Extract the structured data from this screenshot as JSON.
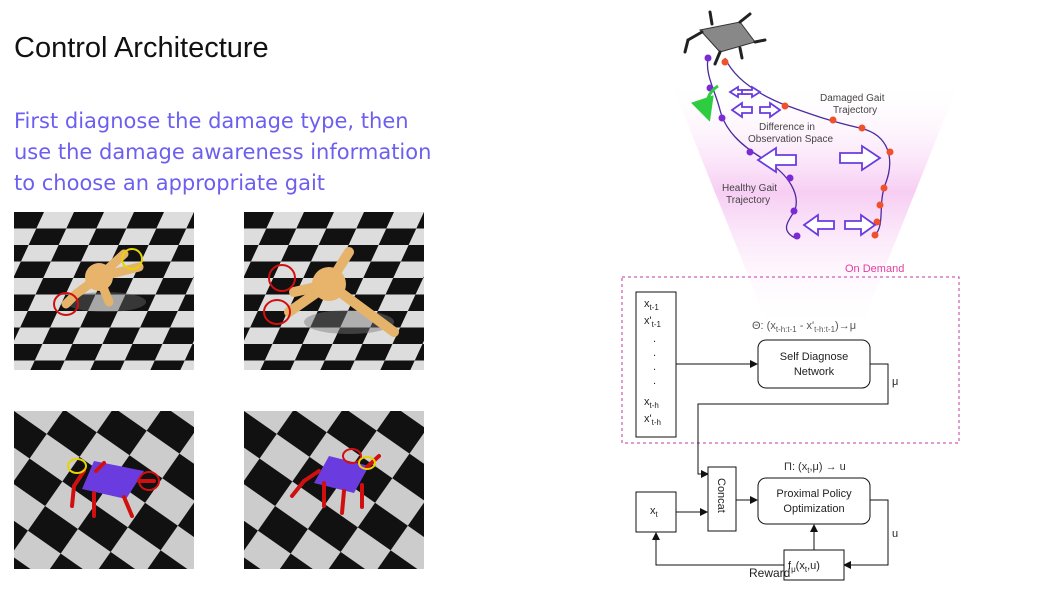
{
  "slide": {
    "title": "Control Architecture",
    "subtitle": "First diagnose the damage type, then use the damage awareness information to choose an appropriate gait"
  },
  "trajectory": {
    "damaged_label": [
      "Damaged Gait",
      "Trajectory"
    ],
    "difference_label": [
      "Difference in",
      "Observation Space"
    ],
    "healthy_label": [
      "Healthy Gait",
      "Trajectory"
    ],
    "on_demand": "On Demand"
  },
  "architecture": {
    "history_items": [
      {
        "base": "x",
        "sub": "t-1"
      },
      {
        "base": "x'",
        "sub": "t-1"
      },
      {
        "base": ".",
        "sub": ""
      },
      {
        "base": ".",
        "sub": ""
      },
      {
        "base": ".",
        "sub": ""
      },
      {
        "base": ".",
        "sub": ""
      },
      {
        "base": "x",
        "sub": "t-h"
      },
      {
        "base": "x'",
        "sub": "t-h"
      }
    ],
    "diagnose_formula": {
      "prefix": "Θ: (x",
      "sub1": "t-h:t-1",
      "mid": " - x'",
      "sub2": "t-h:t-1",
      "suffix": ")→μ"
    },
    "self_diagnose": [
      "Self Diagnose",
      "Network"
    ],
    "mu_label": "μ",
    "policy_formula": {
      "prefix": "Π: (x",
      "sub": "t",
      "suffix": ",μ) → u"
    },
    "ppo": [
      "Proximal Policy",
      "Optimization"
    ],
    "concat": "Concat",
    "xt": {
      "base": "x",
      "sub": "t"
    },
    "u_label": "u",
    "reward": "Reward",
    "f_box": {
      "a": "f",
      "sub": "μ",
      "b": "(x",
      "sub2": "t",
      "c": ",u)"
    }
  },
  "colors": {
    "subtitle": "#6c5ff0",
    "healthy_dot": "#7a2bd6",
    "damaged_dot": "#f0502a",
    "arrow": "#6a3ce0",
    "on_demand": "#e040a0",
    "green_arrow": "#2ecc40"
  }
}
